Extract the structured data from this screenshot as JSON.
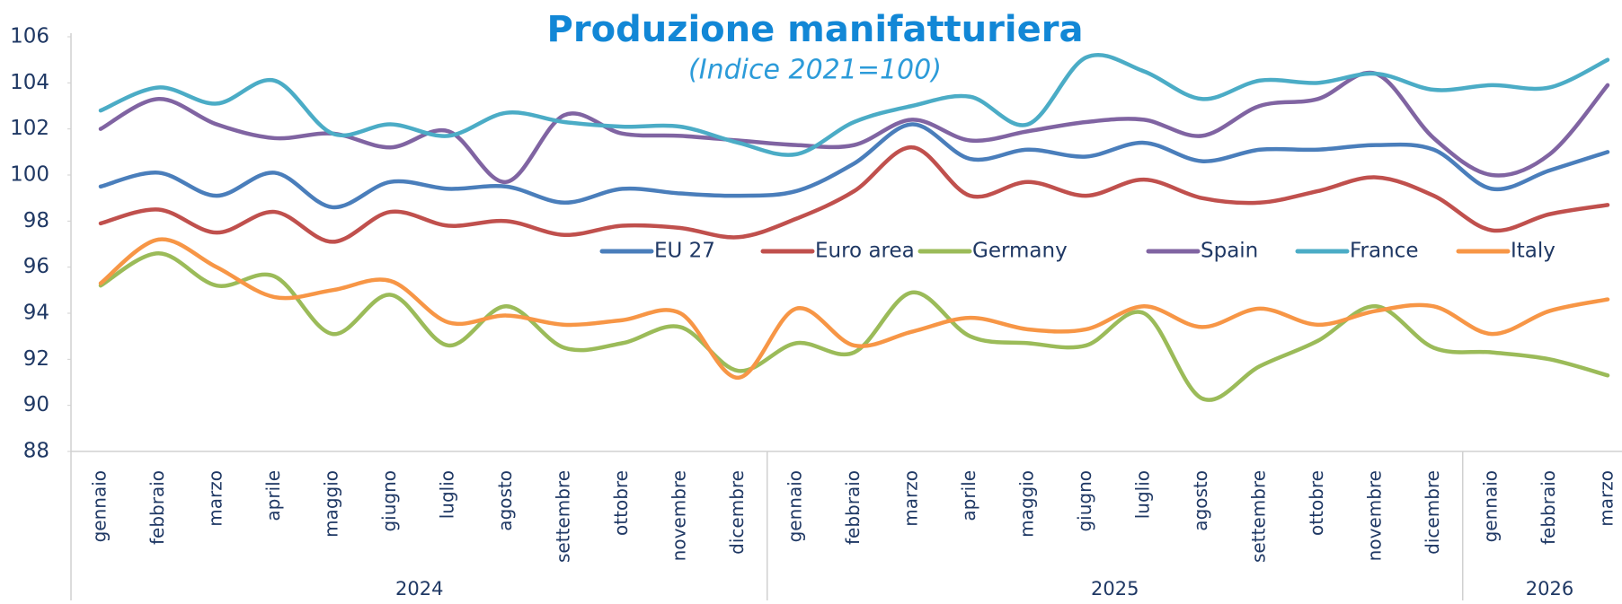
{
  "chart_data": {
    "type": "line",
    "title": "Produzione manifatturiera",
    "subtitle": "(Indice 2021=100)",
    "category_groups": [
      {
        "label": "2024",
        "categories": [
          "gennaio",
          "febbraio",
          "marzo",
          "aprile",
          "maggio",
          "giugno",
          "luglio",
          "agosto",
          "settembre",
          "ottobre",
          "novembre",
          "dicembre"
        ]
      },
      {
        "label": "2025",
        "categories": [
          "gennaio",
          "febbraio",
          "marzo",
          "aprile",
          "maggio",
          "giugno",
          "luglio",
          "agosto",
          "settembre",
          "ottobre",
          "novembre",
          "dicembre"
        ]
      },
      {
        "label": "2026",
        "categories": [
          "gennaio",
          "febbraio",
          "marzo"
        ]
      }
    ],
    "ylim": [
      88,
      106
    ],
    "yticks": [
      88,
      90,
      92,
      94,
      96,
      98,
      100,
      102,
      104,
      106
    ],
    "smooth": true,
    "series": [
      {
        "name": "EU 27",
        "color": "#4a7ebb",
        "values": [
          99.5,
          100.1,
          99.1,
          100.1,
          98.6,
          99.7,
          99.4,
          99.5,
          98.8,
          99.4,
          99.2,
          99.1,
          99.3,
          100.5,
          102.2,
          100.7,
          101.1,
          100.8,
          101.4,
          100.6,
          101.1,
          101.1,
          101.3,
          101.1,
          99.4,
          100.2,
          101.0
        ]
      },
      {
        "name": "Euro area",
        "color": "#c0504d",
        "values": [
          97.9,
          98.5,
          97.5,
          98.4,
          97.1,
          98.4,
          97.8,
          98.0,
          97.4,
          97.8,
          97.7,
          97.3,
          98.1,
          99.3,
          101.2,
          99.1,
          99.7,
          99.1,
          99.8,
          99.0,
          98.8,
          99.3,
          99.9,
          99.1,
          97.6,
          98.3,
          98.7
        ]
      },
      {
        "name": "Germany",
        "color": "#9bbb59",
        "values": [
          95.2,
          96.6,
          95.2,
          95.6,
          93.1,
          94.8,
          92.6,
          94.3,
          92.5,
          92.7,
          93.4,
          91.5,
          92.7,
          92.3,
          94.9,
          93.0,
          92.7,
          92.6,
          94.0,
          90.3,
          91.7,
          92.8,
          94.3,
          92.5,
          92.3,
          92.0,
          91.3
        ]
      },
      {
        "name": "Spain",
        "color": "#8064a2",
        "values": [
          102.0,
          103.3,
          102.2,
          101.6,
          101.8,
          101.2,
          101.9,
          99.7,
          102.6,
          101.8,
          101.7,
          101.5,
          101.3,
          101.3,
          102.4,
          101.5,
          101.9,
          102.3,
          102.4,
          101.7,
          103.0,
          103.3,
          104.4,
          101.6,
          100.0,
          100.9,
          103.9
        ]
      },
      {
        "name": "France",
        "color": "#4bacc6",
        "values": [
          102.8,
          103.8,
          103.1,
          104.1,
          101.8,
          102.2,
          101.7,
          102.7,
          102.3,
          102.1,
          102.1,
          101.4,
          100.9,
          102.3,
          103.0,
          103.4,
          102.2,
          105.1,
          104.5,
          103.3,
          104.1,
          104.0,
          104.4,
          103.7,
          103.9,
          103.8,
          105.0
        ]
      },
      {
        "name": "Italy",
        "color": "#f79646",
        "values": [
          95.3,
          97.2,
          96.0,
          94.7,
          95.0,
          95.4,
          93.6,
          93.9,
          93.5,
          93.7,
          94.0,
          91.2,
          94.2,
          92.6,
          93.2,
          93.8,
          93.3,
          93.3,
          94.3,
          93.4,
          94.2,
          93.5,
          94.1,
          94.3,
          93.1,
          94.1,
          94.6
        ]
      }
    ]
  }
}
